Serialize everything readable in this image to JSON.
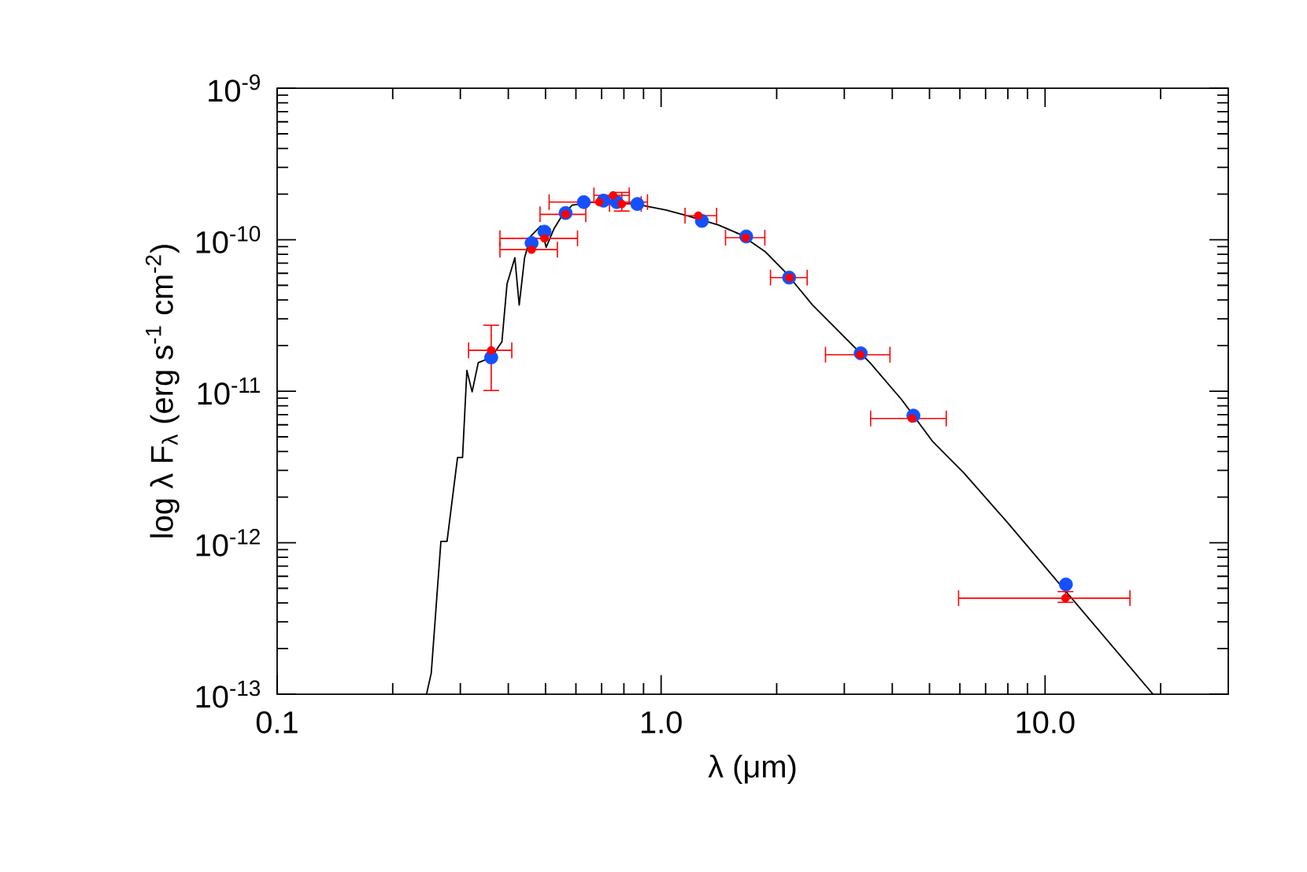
{
  "chart_data": {
    "type": "scatter",
    "xlabel": "λ (μm)",
    "ylabel": "log λ F$_{λ}$ (erg s$^{-1}$ cm$^{-2}$)",
    "log": "xy",
    "xlim": [
      0.1,
      30
    ],
    "ylim": [
      1e-13,
      1e-09
    ],
    "xticks": [
      0.1,
      {
        "value": 1,
        "label": "1.0"
      },
      {
        "value": 10,
        "label": "10.0"
      }
    ],
    "yticks": [
      {
        "value": 1e-13,
        "label": "10$^{-13}$"
      },
      {
        "value": 1e-12,
        "label": "10$^{-12}$"
      },
      {
        "value": 1e-11,
        "label": "10$^{-11}$"
      },
      {
        "value": 1e-10,
        "label": "10$^{-10}$"
      },
      {
        "value": 1e-09,
        "label": "10$^{-9}$"
      }
    ],
    "series": [
      {
        "type": "line",
        "color": "#000000",
        "marker": "none",
        "x": [
          0.245,
          0.252,
          0.267,
          0.277,
          0.295,
          0.304,
          0.312,
          0.322,
          0.334,
          0.361,
          0.385,
          0.397,
          0.416,
          0.427,
          0.441,
          0.457,
          0.486,
          0.502,
          0.526,
          0.552,
          0.587,
          0.666,
          0.855,
          1.03,
          1.17,
          1.41,
          1.6,
          1.87,
          2.12,
          2.48,
          2.99,
          3.5,
          4.23,
          5.1,
          6.15,
          7.9,
          19.1
        ],
        "values": [
          1e-13,
          1.38e-13,
          1.02e-12,
          1.02e-12,
          3.65e-12,
          3.65e-12,
          1.37e-11,
          9.9e-12,
          1.54e-11,
          1.67e-11,
          2.12e-11,
          5.1e-11,
          7.6e-11,
          3.7e-11,
          7.6e-11,
          1.05e-10,
          1.23e-10,
          8.9e-11,
          1.18e-10,
          1.44e-10,
          1.69e-10,
          1.77e-10,
          1.72e-10,
          1.57e-10,
          1.44e-10,
          1.25e-10,
          1.09e-10,
          8.3e-11,
          6e-11,
          3.7e-11,
          2.3e-11,
          1.54e-11,
          8.8e-12,
          4.64e-12,
          2.88e-12,
          1.4e-12,
          1e-13
        ]
      },
      {
        "type": "scatter",
        "color": "#ff0000",
        "marker": "circle",
        "x": [
          0.361,
          0.46,
          0.497,
          0.564,
          0.69,
          0.75,
          0.79,
          1.25,
          1.66,
          2.16,
          3.3,
          4.5,
          11.3
        ],
        "values": [
          1.86e-11,
          8.6e-11,
          1.02e-10,
          1.47e-10,
          1.77e-10,
          1.96e-10,
          1.72e-10,
          1.44e-10,
          1.03e-10,
          5.62e-11,
          1.74e-11,
          6.6e-12,
          4.3e-13
        ],
        "errors": [
          [
            1e-11,
            2.75e-11
          ],
          null,
          null,
          null,
          null,
          null,
          [
            1.53e-10,
            2.07e-10
          ],
          null,
          null,
          null,
          null,
          null,
          [
            4e-13,
            4.8e-13
          ]
        ],
        "xerrors": [
          [
            0.314,
            0.41
          ],
          [
            0.379,
            0.539
          ],
          [
            0.379,
            0.608
          ],
          [
            0.482,
            0.639
          ],
          [
            0.509,
            0.925
          ],
          [
            0.666,
            0.829
          ],
          [
            0.731,
            0.891
          ],
          [
            1.15,
            1.4
          ],
          [
            1.466,
            1.87
          ],
          [
            1.92,
            2.41
          ],
          [
            2.67,
            3.96
          ],
          [
            3.5,
            5.55
          ],
          [
            5.93,
            16.7
          ]
        ]
      },
      {
        "type": "scatter",
        "color": "#1450ff",
        "marker": "circle",
        "x": [
          0.361,
          0.46,
          0.497,
          0.564,
          0.629,
          0.708,
          0.766,
          0.867,
          1.277,
          1.666,
          2.155,
          3.31,
          4.54,
          11.33
        ],
        "values": [
          1.67e-11,
          9.5e-11,
          1.13e-10,
          1.5e-10,
          1.77e-10,
          1.81e-10,
          1.77e-10,
          1.72e-10,
          1.33e-10,
          1.05e-10,
          5.62e-11,
          1.78e-11,
          6.9e-12,
          5.3e-13
        ]
      }
    ]
  }
}
